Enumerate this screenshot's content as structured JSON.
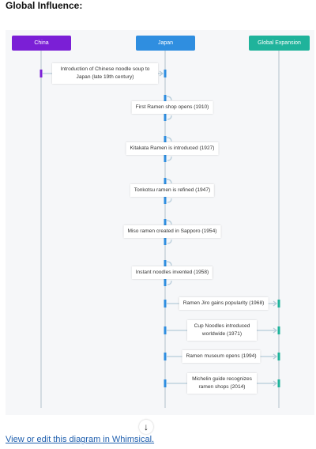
{
  "heading": "Global Influence:",
  "lanes": [
    {
      "label": "China"
    },
    {
      "label": "Japan"
    },
    {
      "label": "Global Expansion"
    }
  ],
  "messages": [
    {
      "label": "Introduction of Chinese noodle soup to Japan (late 19th century)"
    },
    {
      "label": "First Ramen shop opens (1910)"
    },
    {
      "label": "Kitakata Ramen is introduced (1927)"
    },
    {
      "label": "Tonkotsu ramen is refined (1947)"
    },
    {
      "label": "Miso ramen created in Sapporo (1954)"
    },
    {
      "label": "Instant noodles invented (1958)"
    },
    {
      "label": "Ramen Jiro gains popularity (1968)"
    },
    {
      "label": "Cup Noodles introduced worldwide (1971)"
    },
    {
      "label": "Ramen museum opens (1994)"
    },
    {
      "label": "Michelin guide recognizes ramen shops (2014)"
    }
  ],
  "link": "View or edit this diagram in Whimsical."
}
